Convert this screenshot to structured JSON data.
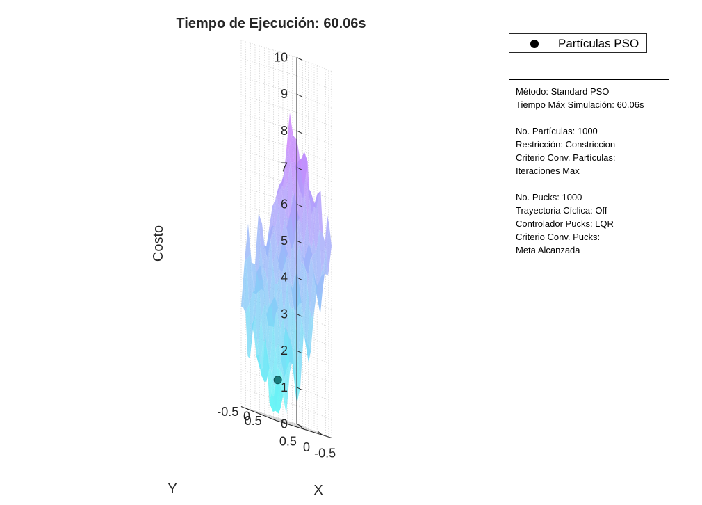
{
  "chart_data": {
    "type": "surface3d",
    "title": "Tiempo de Ejecución: 60.06s",
    "xlabel": "X",
    "ylabel": "Y",
    "zlabel": "Costo",
    "xlim": [
      -0.75,
      0.75
    ],
    "ylim": [
      -0.75,
      0.75
    ],
    "zlim": [
      0,
      10
    ],
    "x_ticks": [
      "-0.5",
      "0",
      "0.5"
    ],
    "y_ticks": [
      "-0.5",
      "0",
      "0.5"
    ],
    "z_ticks": [
      "0",
      "1",
      "2",
      "3",
      "4",
      "5",
      "6",
      "7",
      "8",
      "9",
      "10"
    ],
    "grid": true,
    "colormap": "cool",
    "colors": {
      "surface_low": "#66f5f5",
      "surface_high": "#e066ff",
      "particle": "#1a7a7a"
    },
    "series": [
      {
        "name": "Partículas PSO",
        "type": "scatter3d",
        "points": [
          {
            "x": 0.45,
            "y": 0.35,
            "z": 1.1
          }
        ]
      }
    ],
    "legend_placement": "top-right"
  },
  "legend": {
    "label": "Partículas PSO"
  },
  "info": {
    "lines": [
      "Método: Standard PSO",
      "Tiempo Máx Simulación: 60.06s",
      "",
      "No. Partículas: 1000",
      "Restricción: Constriccion",
      "Criterio Conv. Partículas:",
      "Iteraciones Max",
      "",
      "No. Pucks: 1000",
      "Trayectoria Cíclica: Off",
      "Controlador Pucks: LQR",
      "Criterio Conv. Pucks:",
      "Meta Alcanzada"
    ]
  }
}
